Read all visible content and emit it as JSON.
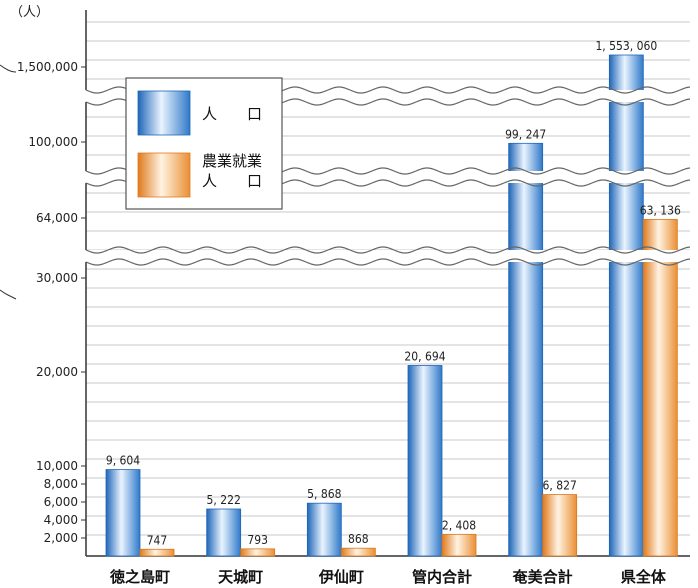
{
  "chart_data": {
    "type": "bar",
    "unit_label": "（人）",
    "categories": [
      "徳之島町",
      "天城町",
      "伊仙町",
      "管内合計",
      "奄美合計",
      "県全体"
    ],
    "series": [
      {
        "name": "人　　口",
        "values": [
          9604,
          5222,
          5868,
          20694,
          99247,
          1553060
        ],
        "labels": [
          "9, 604",
          "5, 222",
          "5, 868",
          "20, 694",
          "99, 247",
          "1, 553, 060"
        ],
        "color": "#4a90d9"
      },
      {
        "name": "農業就業\n人　　口",
        "name_lines": [
          "農業就業",
          "人　　口"
        ],
        "values": [
          747,
          793,
          868,
          2408,
          6827,
          63136
        ],
        "labels": [
          "747",
          "793",
          "868",
          "2, 408",
          "6, 827",
          "63, 136"
        ],
        "color": "#f0a050"
      }
    ],
    "yticks": [
      "2,000",
      "4,000",
      "6,000",
      "8,000",
      "10,000",
      "20,000",
      "30,000",
      "64,000",
      "100,000",
      "1,500,000"
    ],
    "broken_axis": true,
    "grid": true,
    "legend_position": "top-left"
  }
}
